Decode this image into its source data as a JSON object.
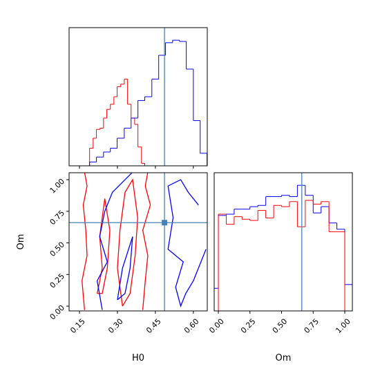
{
  "chart_data": [
    {
      "type": "histogram",
      "xlim": [
        0.109,
        0.655
      ],
      "ylim": [
        0,
        1.1
      ],
      "xticks": [
        0.15,
        0.3,
        0.45,
        0.6
      ],
      "tick_labels": false,
      "truth": 0.486,
      "truth_color": "#4682b4",
      "series": [
        {
          "color": "#ff0000",
          "bins": [
            0.19,
            0.204,
            0.217,
            0.231,
            0.245,
            0.258,
            0.272,
            0.286,
            0.299,
            0.313,
            0.327,
            0.34,
            0.354,
            0.368,
            0.381,
            0.395,
            0.408
          ],
          "values": [
            0.14,
            0.22,
            0.29,
            0.3,
            0.38,
            0.45,
            0.49,
            0.55,
            0.63,
            0.65,
            0.69,
            0.49,
            0.38,
            0.33,
            0.15,
            0.02
          ]
        },
        {
          "color": "#0000ff",
          "bins": [
            0.19,
            0.217,
            0.245,
            0.272,
            0.299,
            0.327,
            0.354,
            0.381,
            0.408,
            0.436,
            0.463,
            0.49,
            0.518,
            0.545,
            0.572,
            0.6,
            0.627,
            0.654
          ],
          "values": [
            0.03,
            0.07,
            0.11,
            0.14,
            0.22,
            0.3,
            0.38,
            0.52,
            0.55,
            0.69,
            0.88,
            0.98,
            1.0,
            0.99,
            0.77,
            0.36,
            0.1
          ]
        }
      ]
    },
    {
      "type": "contour",
      "xlabel": "H0",
      "ylabel": "Om",
      "xlim": [
        0.109,
        0.655
      ],
      "ylim": [
        -0.038,
        1.055
      ],
      "xticks": [
        0.15,
        {
          "value": 0.3,
          "label": "0.30"
        },
        0.45,
        {
          "value": 0.6,
          "label": "0.60"
        }
      ],
      "yticks": [
        {
          "value": 0,
          "label": "0.00"
        },
        0.25,
        {
          "value": 0.5,
          "label": "0.50"
        },
        0.75,
        {
          "value": 1,
          "label": "1.00"
        }
      ],
      "truth_x": 0.486,
      "truth_y": 0.66,
      "truth_color": "#4682b4",
      "series": [
        {
          "color": "#ff0000",
          "x": [
            0.17,
            0.16,
            0.18,
            0.175,
            0.165,
            0.18,
            0.17
          ],
          "y": [
            -0.03,
            0.2,
            0.4,
            0.6,
            0.8,
            0.95,
            1.06
          ]
        },
        {
          "color": "#ff0000",
          "x": [
            0.4,
            0.41,
            0.42,
            0.4,
            0.43,
            0.41,
            0.42
          ],
          "y": [
            -0.03,
            0.2,
            0.4,
            0.6,
            0.8,
            0.95,
            1.06
          ]
        },
        {
          "color": "#ff0000",
          "x": [
            0.22,
            0.24,
            0.23,
            0.25,
            0.27,
            0.26,
            0.24,
            0.22
          ],
          "y": [
            0.1,
            0.3,
            0.55,
            0.85,
            0.6,
            0.3,
            0.1,
            0.1
          ]
        },
        {
          "color": "#ff0000",
          "x": [
            0.32,
            0.3,
            0.31,
            0.33,
            0.36,
            0.38,
            0.37,
            0.35,
            0.32
          ],
          "y": [
            0.0,
            0.3,
            0.6,
            0.9,
            1.0,
            0.7,
            0.4,
            0.1,
            0.0
          ]
        },
        {
          "color": "#0000ff",
          "x": [
            0.24,
            0.22,
            0.26,
            0.23,
            0.25,
            0.28,
            0.33,
            0.36
          ],
          "y": [
            -0.03,
            0.2,
            0.35,
            0.55,
            0.75,
            0.9,
            1.0,
            1.06
          ]
        },
        {
          "color": "#0000ff",
          "x": [
            0.65,
            0.63,
            0.6,
            0.57,
            0.55,
            0.53,
            0.56,
            0.5,
            0.52,
            0.5,
            0.55,
            0.58,
            0.62
          ],
          "y": [
            0.45,
            0.35,
            0.2,
            0.1,
            0.0,
            0.15,
            0.35,
            0.45,
            0.7,
            0.95,
            1.0,
            0.9,
            0.8
          ]
        },
        {
          "color": "#0000ff",
          "x": [
            0.3,
            0.32,
            0.36,
            0.35,
            0.33,
            0.3
          ],
          "y": [
            0.05,
            0.3,
            0.55,
            0.3,
            0.1,
            0.05
          ]
        }
      ]
    },
    {
      "type": "histogram",
      "xlabel": "Om",
      "xlim": [
        -0.033,
        1.06
      ],
      "ylim": [
        0,
        1.1
      ],
      "xticks": [
        {
          "value": 0,
          "label": "0.00"
        },
        0.25,
        {
          "value": 0.5,
          "label": "0.50"
        },
        0.75,
        {
          "value": 1,
          "label": "1.00"
        }
      ],
      "truth": 0.66,
      "truth_color": "#4682b4",
      "series": [
        {
          "color": "#0000ff",
          "bins": [
            -0.0625,
            0,
            0.0625,
            0.125,
            0.1875,
            0.25,
            0.3125,
            0.375,
            0.4375,
            0.5,
            0.5625,
            0.625,
            0.6875,
            0.75,
            0.8125,
            0.875,
            0.9375,
            1,
            1.0625
          ],
          "values": [
            0.18,
            0.76,
            0.77,
            0.81,
            0.81,
            0.83,
            0.84,
            0.91,
            0.91,
            0.92,
            0.91,
            1.0,
            0.92,
            0.78,
            0.83,
            0.7,
            0.65,
            0.21
          ]
        },
        {
          "color": "#ff0000",
          "bins": [
            -0.0625,
            0,
            0.0625,
            0.125,
            0.1875,
            0.25,
            0.3125,
            0.375,
            0.4375,
            0.5,
            0.5625,
            0.625,
            0.6875,
            0.75,
            0.8125,
            0.875,
            0.9375,
            1,
            1.0625
          ],
          "values": [
            0,
            0.77,
            0.69,
            0.75,
            0.73,
            0.72,
            0.8,
            0.74,
            0.84,
            0.83,
            0.87,
            0.67,
            0.88,
            0.85,
            0.87,
            0.63,
            0.63,
            0
          ]
        }
      ]
    }
  ]
}
